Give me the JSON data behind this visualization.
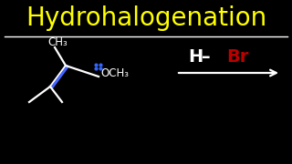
{
  "title": "Hydrohalogenation",
  "title_color": "#FFFF00",
  "bg_color": "#000000",
  "separator_color": "#FFFFFF",
  "molecule_color": "#FFFFFF",
  "double_bond_color": "#4466FF",
  "label_CH3_top": "CH₃",
  "label_OCH3": "OCH₃",
  "reagent_H": "H",
  "reagent_Br": "Br",
  "reagent_H_color": "#FFFFFF",
  "reagent_Br_color": "#BB0000",
  "arrow_color": "#FFFFFF",
  "lone_pair_color": "#3366FF",
  "title_fontsize": 20,
  "label_fontsize": 8.5,
  "reagent_fontsize": 14
}
